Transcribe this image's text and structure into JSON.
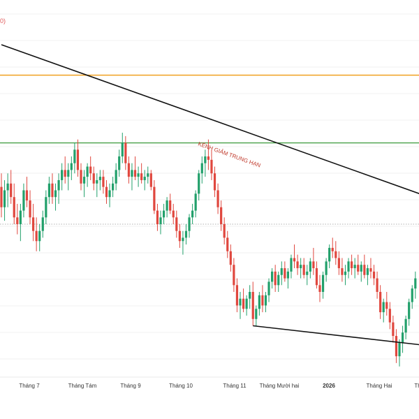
{
  "chart_data": {
    "type": "candlestick",
    "title": "",
    "corner_text": "0)",
    "annotation": "KÊNH GIẢM TRUNG HẠN",
    "xlabel": "",
    "ylabel": "",
    "x_ticks": [
      "Tháng 7",
      "Tháng Tám",
      "Tháng 9",
      "Tháng 10",
      "Tháng 11",
      "Tháng Mười hai",
      "2026",
      "Tháng Hai",
      "Th"
    ],
    "bold_ticks": [
      "2026"
    ],
    "y_grid": "horizontal",
    "levels": {
      "orange_resistance": 104,
      "green_resistance": 84,
      "dotted_reference": 60
    },
    "trendlines": [
      {
        "name": "channel-top",
        "from": [
          0,
          113
        ],
        "to": [
          182,
          52
        ]
      },
      {
        "name": "channel-bottom",
        "from": [
          79,
          30
        ],
        "to": [
          182,
          19
        ]
      }
    ],
    "candles": [
      [
        0,
        71,
        75,
        62,
        65
      ],
      [
        1,
        65,
        73,
        61,
        70
      ],
      [
        2,
        70,
        75,
        65,
        72
      ],
      [
        3,
        72,
        76,
        66,
        68
      ],
      [
        4,
        68,
        72,
        60,
        62
      ],
      [
        5,
        62,
        66,
        57,
        60
      ],
      [
        6,
        60,
        66,
        55,
        64
      ],
      [
        7,
        64,
        72,
        62,
        70
      ],
      [
        8,
        70,
        74,
        65,
        67
      ],
      [
        9,
        67,
        70,
        60,
        62
      ],
      [
        10,
        62,
        66,
        55,
        58
      ],
      [
        11,
        58,
        62,
        52,
        55
      ],
      [
        12,
        55,
        60,
        52,
        58
      ],
      [
        13,
        58,
        64,
        56,
        62
      ],
      [
        14,
        62,
        70,
        60,
        68
      ],
      [
        15,
        68,
        74,
        66,
        72
      ],
      [
        16,
        72,
        75,
        66,
        68
      ],
      [
        17,
        68,
        72,
        64,
        70
      ],
      [
        18,
        70,
        75,
        66,
        73
      ],
      [
        19,
        73,
        78,
        70,
        76
      ],
      [
        20,
        76,
        80,
        72,
        74
      ],
      [
        21,
        74,
        78,
        70,
        76
      ],
      [
        22,
        76,
        80,
        73,
        78
      ],
      [
        23,
        78,
        84,
        75,
        82
      ],
      [
        24,
        82,
        85,
        74,
        76
      ],
      [
        25,
        76,
        78,
        70,
        72
      ],
      [
        26,
        72,
        76,
        68,
        74
      ],
      [
        27,
        74,
        78,
        71,
        77
      ],
      [
        28,
        77,
        80,
        73,
        75
      ],
      [
        29,
        75,
        77,
        70,
        72
      ],
      [
        30,
        72,
        75,
        68,
        73
      ],
      [
        31,
        73,
        76,
        70,
        74
      ],
      [
        32,
        74,
        76,
        69,
        71
      ],
      [
        33,
        71,
        73,
        66,
        68
      ],
      [
        34,
        68,
        72,
        65,
        70
      ],
      [
        35,
        70,
        74,
        68,
        72
      ],
      [
        36,
        72,
        78,
        70,
        76
      ],
      [
        37,
        76,
        82,
        74,
        80
      ],
      [
        38,
        80,
        87,
        78,
        84
      ],
      [
        39,
        84,
        86,
        76,
        78
      ],
      [
        40,
        78,
        80,
        72,
        74
      ],
      [
        41,
        74,
        78,
        70,
        76
      ],
      [
        42,
        76,
        80,
        73,
        74
      ],
      [
        43,
        74,
        77,
        71,
        75
      ],
      [
        44,
        75,
        78,
        72,
        73
      ],
      [
        45,
        73,
        76,
        70,
        74
      ],
      [
        46,
        74,
        77,
        72,
        75
      ],
      [
        47,
        75,
        76,
        70,
        71
      ],
      [
        48,
        71,
        73,
        63,
        64
      ],
      [
        49,
        64,
        66,
        58,
        60
      ],
      [
        50,
        60,
        64,
        57,
        62
      ],
      [
        51,
        62,
        66,
        60,
        64
      ],
      [
        52,
        64,
        68,
        62,
        67
      ],
      [
        53,
        67,
        69,
        63,
        64
      ],
      [
        54,
        64,
        66,
        60,
        62
      ],
      [
        55,
        62,
        64,
        56,
        58
      ],
      [
        56,
        58,
        60,
        53,
        55
      ],
      [
        57,
        55,
        58,
        51,
        56
      ],
      [
        58,
        56,
        60,
        54,
        58
      ],
      [
        59,
        58,
        63,
        56,
        62
      ],
      [
        60,
        62,
        66,
        60,
        64
      ],
      [
        61,
        64,
        70,
        62,
        69
      ],
      [
        62,
        69,
        76,
        67,
        75
      ],
      [
        63,
        75,
        80,
        72,
        78
      ],
      [
        64,
        78,
        82,
        74,
        80
      ],
      [
        65,
        80,
        85,
        76,
        79
      ],
      [
        66,
        79,
        82,
        73,
        75
      ],
      [
        67,
        75,
        77,
        68,
        70
      ],
      [
        68,
        70,
        72,
        63,
        65
      ],
      [
        69,
        65,
        67,
        58,
        60
      ],
      [
        70,
        60,
        62,
        54,
        56
      ],
      [
        71,
        56,
        58,
        50,
        52
      ],
      [
        72,
        52,
        54,
        46,
        48
      ],
      [
        73,
        48,
        50,
        40,
        42
      ],
      [
        74,
        42,
        44,
        34,
        36
      ],
      [
        75,
        36,
        40,
        32,
        38
      ],
      [
        76,
        38,
        41,
        34,
        35
      ],
      [
        77,
        35,
        39,
        33,
        38
      ],
      [
        78,
        38,
        42,
        35,
        40
      ],
      [
        79,
        40,
        43,
        30,
        32
      ],
      [
        80,
        32,
        36,
        30,
        35
      ],
      [
        81,
        35,
        40,
        33,
        39
      ],
      [
        82,
        39,
        42,
        34,
        36
      ],
      [
        83,
        36,
        40,
        34,
        39
      ],
      [
        84,
        39,
        44,
        37,
        43
      ],
      [
        85,
        43,
        47,
        41,
        46
      ],
      [
        86,
        46,
        48,
        40,
        42
      ],
      [
        87,
        42,
        46,
        40,
        45
      ],
      [
        88,
        45,
        49,
        42,
        47
      ],
      [
        89,
        47,
        49,
        43,
        44
      ],
      [
        90,
        44,
        47,
        41,
        46
      ],
      [
        91,
        46,
        51,
        44,
        50
      ],
      [
        92,
        50,
        54,
        47,
        49
      ],
      [
        93,
        49,
        51,
        45,
        47
      ],
      [
        94,
        47,
        50,
        44,
        48
      ],
      [
        95,
        48,
        50,
        44,
        45
      ],
      [
        96,
        45,
        48,
        42,
        46
      ],
      [
        97,
        46,
        50,
        44,
        49
      ],
      [
        98,
        49,
        53,
        45,
        47
      ],
      [
        99,
        47,
        49,
        41,
        42
      ],
      [
        100,
        42,
        45,
        37,
        40
      ],
      [
        101,
        40,
        46,
        38,
        45
      ],
      [
        102,
        45,
        50,
        43,
        49
      ],
      [
        103,
        49,
        54,
        47,
        53
      ],
      [
        104,
        53,
        56,
        50,
        52
      ],
      [
        105,
        52,
        55,
        48,
        50
      ],
      [
        106,
        50,
        52,
        45,
        47
      ],
      [
        107,
        47,
        50,
        43,
        45
      ],
      [
        108,
        45,
        48,
        42,
        46
      ],
      [
        109,
        46,
        50,
        44,
        49
      ],
      [
        110,
        49,
        51,
        45,
        47
      ],
      [
        111,
        47,
        50,
        44,
        48
      ],
      [
        112,
        48,
        51,
        45,
        46
      ],
      [
        113,
        46,
        49,
        43,
        48
      ],
      [
        114,
        48,
        51,
        44,
        45
      ],
      [
        115,
        45,
        48,
        42,
        47
      ],
      [
        116,
        47,
        50,
        44,
        46
      ],
      [
        117,
        46,
        48,
        42,
        44
      ],
      [
        118,
        44,
        46,
        38,
        40
      ],
      [
        119,
        40,
        42,
        32,
        34
      ],
      [
        120,
        34,
        38,
        31,
        37
      ],
      [
        121,
        37,
        40,
        33,
        35
      ],
      [
        122,
        35,
        37,
        29,
        31
      ],
      [
        123,
        31,
        33,
        25,
        27
      ],
      [
        124,
        27,
        29,
        19,
        21
      ],
      [
        125,
        21,
        26,
        18,
        25
      ],
      [
        126,
        25,
        30,
        22,
        28
      ],
      [
        127,
        28,
        33,
        26,
        32
      ],
      [
        128,
        32,
        38,
        30,
        37
      ],
      [
        129,
        37,
        42,
        35,
        41
      ],
      [
        130,
        41,
        46,
        38,
        44
      ]
    ]
  }
}
